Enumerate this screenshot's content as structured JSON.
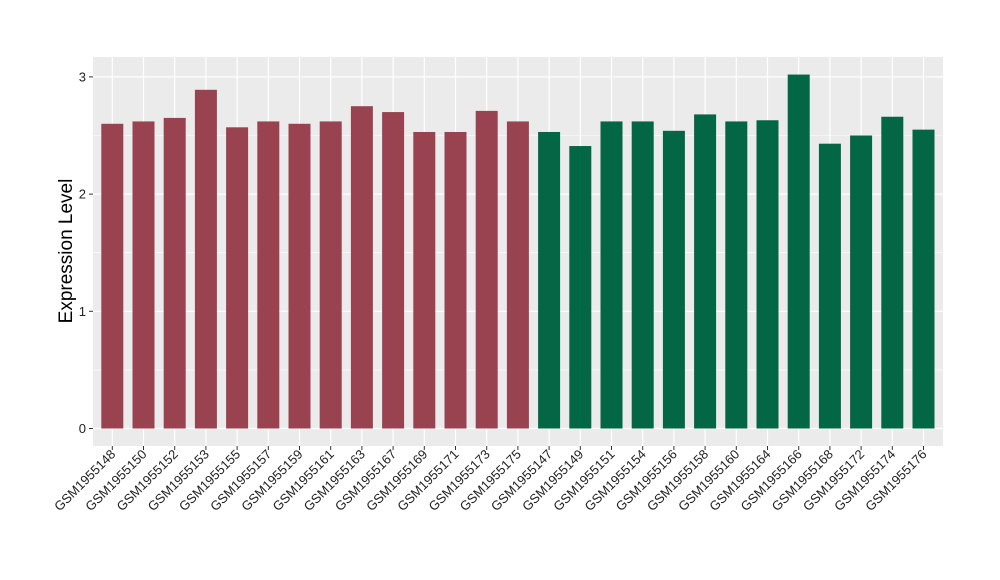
{
  "chart_data": {
    "type": "bar",
    "title": "",
    "xlabel": "",
    "ylabel": "Expression Level",
    "ylim": [
      0,
      3.15
    ],
    "yticks": [
      0,
      1,
      2,
      3
    ],
    "ytick_labels": [
      "0",
      "1",
      "2",
      "3"
    ],
    "grid": true,
    "colors": {
      "group_a": "#9a4350",
      "group_b": "#036644",
      "panel_bg": "#ebebeb",
      "grid": "#ffffff"
    },
    "categories": [
      "GSM1955148",
      "GSM1955150",
      "GSM1955152",
      "GSM1955153",
      "GSM1955155",
      "GSM1955157",
      "GSM1955159",
      "GSM1955161",
      "GSM1955163",
      "GSM1955167",
      "GSM1955169",
      "GSM1955171",
      "GSM1955173",
      "GSM1955175",
      "GSM1955147",
      "GSM1955149",
      "GSM1955151",
      "GSM1955154",
      "GSM1955156",
      "GSM1955158",
      "GSM1955160",
      "GSM1955164",
      "GSM1955166",
      "GSM1955168",
      "GSM1955172",
      "GSM1955174",
      "GSM1955176"
    ],
    "values": [
      2.6,
      2.62,
      2.65,
      2.89,
      2.57,
      2.62,
      2.6,
      2.62,
      2.75,
      2.7,
      2.53,
      2.53,
      2.71,
      2.62,
      2.53,
      2.41,
      2.62,
      2.62,
      2.54,
      2.68,
      2.62,
      2.63,
      3.02,
      2.43,
      2.5,
      2.66,
      2.55
    ],
    "groups": [
      "a",
      "a",
      "a",
      "a",
      "a",
      "a",
      "a",
      "a",
      "a",
      "a",
      "a",
      "a",
      "a",
      "a",
      "b",
      "b",
      "b",
      "b",
      "b",
      "b",
      "b",
      "b",
      "b",
      "b",
      "b",
      "b",
      "b"
    ]
  }
}
